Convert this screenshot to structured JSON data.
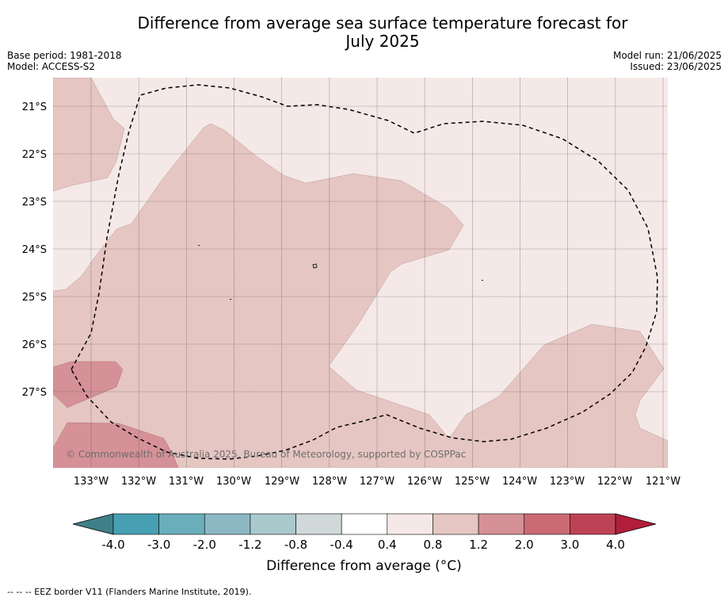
{
  "title_line1": "Difference from average sea surface temperature forecast for",
  "title_line2": "July 2025",
  "base_period": "Base period: 1981-2018",
  "model": "Model: ACCESS-S2",
  "model_run": "Model run: 21/06/2025",
  "issued": "Issued: 23/06/2025",
  "copyright": "© Commonwealth of Australia 2025, Bureau of Meteorology, supported by COSPPac",
  "lat_labels": [
    "21°S",
    "22°S",
    "23°S",
    "24°S",
    "25°S",
    "26°S",
    "27°S"
  ],
  "lon_labels": [
    "133°W",
    "132°W",
    "131°W",
    "130°W",
    "129°W",
    "128°W",
    "127°W",
    "126°W",
    "125°W",
    "124°W",
    "123°W",
    "122°W",
    "121°W"
  ],
  "colorbar": {
    "title": "Difference from average (°C)",
    "ticks": [
      "-4.0",
      "-3.0",
      "-2.0",
      "-1.2",
      "-0.8",
      "-0.4",
      "0.4",
      "0.8",
      "1.2",
      "2.0",
      "3.0",
      "4.0"
    ],
    "colors": [
      "#3f7f8a",
      "#46a0b2",
      "#6aaebb",
      "#8cb8c4",
      "#a9c9cd",
      "#d0d8da",
      "#ffffff",
      "#f5e9e8",
      "#e6c6c2",
      "#d59197",
      "#cb6a73",
      "#be4255",
      "#b01e3a"
    ]
  },
  "map_colors": {
    "zone_0_4_0_8": "#f5e9e8",
    "zone_0_8_1_2": "#e6c6c2",
    "zone_1_2_2_0": "#d59197"
  },
  "footnote": "--  --  -- EEZ border V11 (Flanders Marine Institute, 2019)."
}
